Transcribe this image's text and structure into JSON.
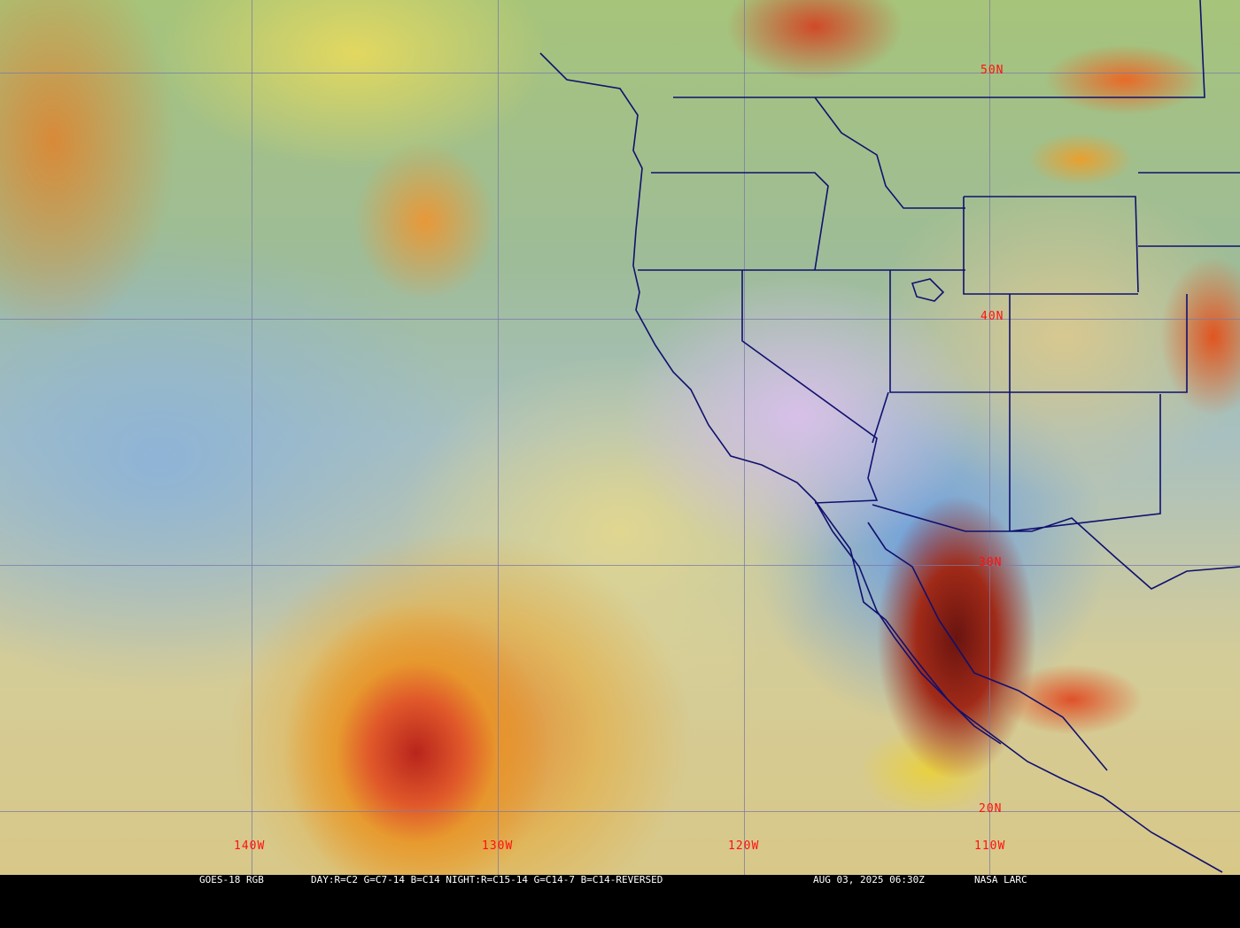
{
  "caption": {
    "satellite": "GOES-18 RGB",
    "recipe": "DAY:R=C2 G=C7-14 B=C14 NIGHT:R=C15-14 G=C14-7 B=C14-REVERSED",
    "timestamp": "AUG 03, 2025 06:30Z",
    "source": "NASA LARC"
  },
  "latitude_labels": [
    "50N",
    "40N",
    "30N",
    "20N"
  ],
  "longitude_labels": [
    "140W",
    "130W",
    "120W",
    "110W"
  ],
  "colors": {
    "grid": "#7a7aa8",
    "label": "#ff1010",
    "borders": "#10106e"
  }
}
